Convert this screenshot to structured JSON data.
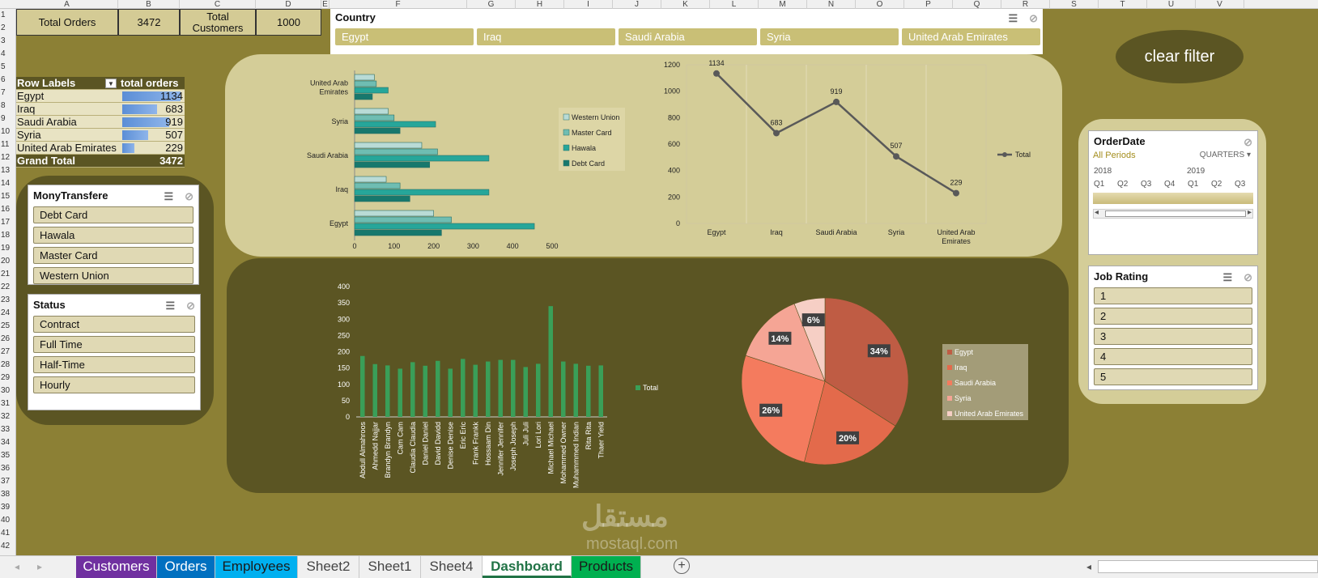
{
  "columns": [
    "A",
    "B",
    "C",
    "D",
    "E",
    "F",
    "G",
    "H",
    "I",
    "J",
    "K",
    "L",
    "M",
    "N",
    "O",
    "P",
    "Q",
    "R",
    "S",
    "T",
    "U",
    "V"
  ],
  "rows": [
    "1",
    "2",
    "3",
    "4",
    "5",
    "6",
    "7",
    "8",
    "9",
    "10",
    "11",
    "12",
    "13",
    "14",
    "15",
    "16",
    "17",
    "18",
    "19",
    "20",
    "21",
    "22",
    "23",
    "24",
    "25",
    "26",
    "27",
    "28",
    "29",
    "30",
    "31",
    "32",
    "33",
    "34",
    "35",
    "36",
    "37",
    "38",
    "39",
    "40",
    "41",
    "42"
  ],
  "kpis": {
    "total_orders_label": "Total Orders",
    "total_orders_value": "3472",
    "total_customers_label": "Total Customers",
    "total_customers_value": "1000"
  },
  "pivot": {
    "header_label": "Row Labels",
    "header_value": "total orders",
    "rows": [
      {
        "label": "Egypt",
        "value": "1134",
        "fraction": 1.0
      },
      {
        "label": "Iraq",
        "value": "683",
        "fraction": 0.602
      },
      {
        "label": "Saudi Arabia",
        "value": "919",
        "fraction": 0.81
      },
      {
        "label": "Syria",
        "value": "507",
        "fraction": 0.447
      },
      {
        "label": "United Arab Emirates",
        "value": "229",
        "fraction": 0.202
      }
    ],
    "total_label": "Grand Total",
    "total_value": "3472"
  },
  "country_slicer": {
    "title": "Country",
    "items": [
      "Egypt",
      "Iraq",
      "Saudi Arabia",
      "Syria",
      "United Arab Emirates"
    ]
  },
  "clear_filter_label": "clear filter",
  "money_slicer": {
    "title": "MonyTransfere",
    "items": [
      "Debt Card",
      "Hawala",
      "Master Card",
      "Western Union"
    ]
  },
  "status_slicer": {
    "title": "Status",
    "items": [
      "Contract",
      "Full Time",
      "Half-Time",
      "Hourly"
    ]
  },
  "order_date": {
    "title": "OrderDate",
    "periods": "All Periods",
    "level": "QUARTERS",
    "years": [
      "2018",
      "2019"
    ],
    "quarters": [
      "Q1",
      "Q2",
      "Q3",
      "Q4",
      "Q1",
      "Q2",
      "Q3"
    ]
  },
  "job_rating": {
    "title": "Job Rating",
    "items": [
      "1",
      "2",
      "3",
      "4",
      "5"
    ]
  },
  "chart_data": [
    {
      "type": "bar",
      "orientation": "horizontal",
      "categories": [
        "Egypt",
        "Iraq",
        "Saudi Arabia",
        "Syria",
        "United Arab Emirates"
      ],
      "series": [
        {
          "name": "Western Union",
          "values": [
            200,
            80,
            170,
            85,
            50
          ],
          "color": "#b9dbd6"
        },
        {
          "name": "Master Card",
          "values": [
            245,
            115,
            210,
            100,
            55
          ],
          "color": "#6fbdb2"
        },
        {
          "name": "Hawala",
          "values": [
            455,
            340,
            340,
            205,
            85
          ],
          "color": "#26a69a"
        },
        {
          "name": "Debt Card",
          "values": [
            220,
            140,
            190,
            115,
            45
          ],
          "color": "#17786d"
        }
      ],
      "xticks": [
        "0",
        "100",
        "200",
        "300",
        "400",
        "500"
      ],
      "xlim": [
        0,
        500
      ],
      "legend": "right"
    },
    {
      "type": "line",
      "categories": [
        "Egypt",
        "Iraq",
        "Saudi Arabia",
        "Syria",
        "United Arab Emirates"
      ],
      "series": [
        {
          "name": "Total",
          "values": [
            1134,
            683,
            919,
            507,
            229
          ],
          "color": "#595959"
        }
      ],
      "yticks": [
        "0",
        "200",
        "400",
        "600",
        "800",
        "1000",
        "1200"
      ],
      "ylim": [
        0,
        1200
      ],
      "legend": "right"
    },
    {
      "type": "bar",
      "categories": [
        "Abdull Almahroos",
        "Ahmedd Najjar",
        "Brandyn Brandyn",
        "Cam Cam",
        "Claudia Claudia",
        "Daniel Daniel",
        "David Davidd",
        "Denise Denise",
        "Eric Eric",
        "Frank Frankk",
        "Hossaam Din",
        "Jennifer Jennifer",
        "Joseph Joseph",
        "Juli Juli",
        "Lori Lori",
        "Michael Michael",
        "Mohammed Owner",
        "Muhammmed Indian",
        "Rita Rita",
        "Thaer Yield"
      ],
      "series": [
        {
          "name": "Total",
          "values": [
            187,
            162,
            158,
            148,
            168,
            157,
            172,
            148,
            178,
            160,
            170,
            175,
            175,
            153,
            163,
            340,
            170,
            163,
            157,
            158
          ],
          "color": "#3a9f58"
        }
      ],
      "yticks": [
        "0",
        "50",
        "100",
        "150",
        "200",
        "250",
        "300",
        "350",
        "400"
      ],
      "ylim": [
        0,
        400
      ],
      "legend": "right"
    },
    {
      "type": "pie",
      "categories": [
        "Egypt",
        "Iraq",
        "Saudi Arabia",
        "Syria",
        "United Arab Emirates"
      ],
      "values": [
        34,
        20,
        26,
        14,
        6
      ],
      "labels": [
        "34%",
        "20%",
        "26%",
        "14%",
        "6%"
      ],
      "colors": [
        "#bf5c44",
        "#e36a4b",
        "#f47b5e",
        "#f5a595",
        "#f6cfc5"
      ],
      "legend": "right"
    }
  ],
  "sheet_tabs": [
    {
      "label": "Customers",
      "bg": "#7030a0",
      "fg": "#ffffff"
    },
    {
      "label": "Orders",
      "bg": "#0070c0",
      "fg": "#ffffff"
    },
    {
      "label": "Employees",
      "bg": "#00b0f0",
      "fg": "#1a1a1a"
    },
    {
      "label": "Sheet2",
      "bg": "#f0f0f0",
      "fg": "#444444"
    },
    {
      "label": "Sheet1",
      "bg": "#f0f0f0",
      "fg": "#444444"
    },
    {
      "label": "Sheet4",
      "bg": "#f0f0f0",
      "fg": "#444444"
    },
    {
      "label": "Dashboard",
      "bg": "#ffffff",
      "fg": "#217346"
    },
    {
      "label": "Products",
      "bg": "#00b050",
      "fg": "#1a1a1a"
    }
  ],
  "watermark": {
    "arabic": "مستقل",
    "latin": "mostaql.com"
  },
  "colors": {
    "background": "#8c8035",
    "dark_panel": "#5b5523",
    "light_panel": "#d4cd98"
  }
}
